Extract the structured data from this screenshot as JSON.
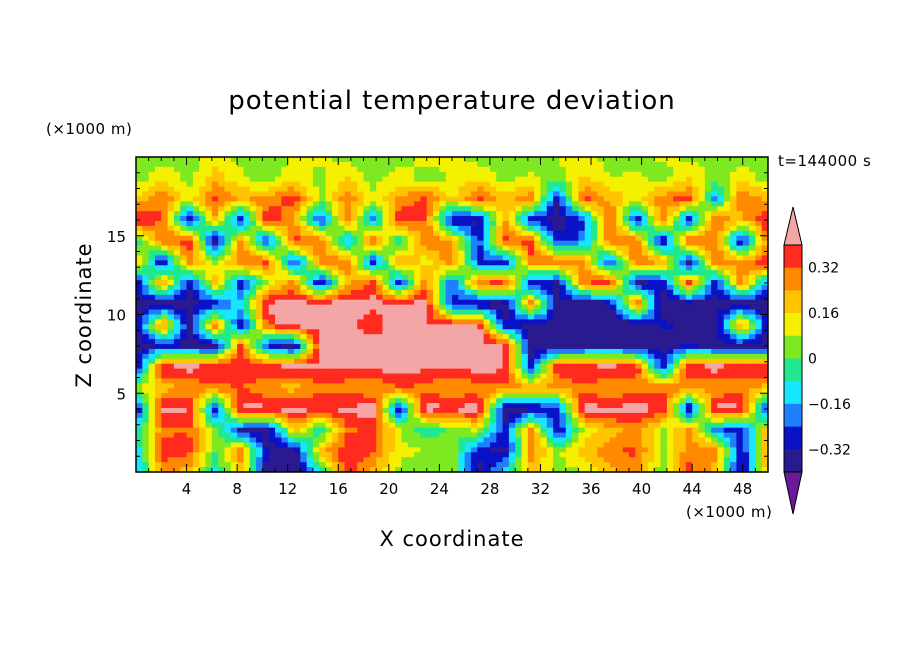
{
  "chart_data": {
    "type": "heatmap",
    "title": "potential temperature deviation",
    "xlabel": "X coordinate",
    "ylabel": "Z coordinate",
    "x_unit": "(×1000 m)",
    "y_unit": "(×1000 m)",
    "time_label": "t=144000 s",
    "xlim": [
      0,
      50
    ],
    "ylim": [
      0,
      20
    ],
    "x_ticks": [
      4,
      8,
      12,
      16,
      20,
      24,
      28,
      32,
      36,
      40,
      44,
      48
    ],
    "y_ticks": [
      5,
      10,
      15
    ],
    "colorbar_labels": [
      "0.32",
      "0.16",
      "0",
      "−0.16",
      "−0.32"
    ],
    "colorbar_levels": [
      -0.4,
      -0.32,
      -0.24,
      -0.16,
      -0.08,
      0,
      0.08,
      0.16,
      0.24,
      0.32,
      0.4
    ],
    "colorbar_colors": [
      "#6a1b9a",
      "#2a1a8f",
      "#0a12c8",
      "#1e7fff",
      "#18e5ff",
      "#1fe88e",
      "#7ee820",
      "#f5f000",
      "#ffc400",
      "#ff8a00",
      "#ff2b1e",
      "#f4a6a6"
    ],
    "z_grid": [
      [
        0.05,
        0.05,
        0.04,
        0.12,
        0.05,
        0.03,
        0.08,
        0.1,
        0.05,
        0.02,
        0.04,
        0.12,
        0.1,
        0.04,
        0.05,
        0.03,
        0.08,
        0.12,
        0.05,
        0.04,
        0.1,
        0.06,
        0.05,
        0.04,
        0.08
      ],
      [
        0.02,
        0.14,
        0.05,
        0.2,
        0.1,
        0.02,
        0.15,
        0.05,
        0.18,
        0.04,
        0.12,
        0.04,
        0.08,
        0.15,
        0.05,
        0.1,
        0.04,
        0.18,
        0.08,
        0.1,
        0.04,
        0.15,
        0.05,
        0.12,
        0.04
      ],
      [
        0.18,
        0.32,
        0.1,
        0.35,
        0.22,
        0.28,
        0.36,
        0.05,
        0.3,
        0.1,
        0.26,
        0.34,
        0.15,
        0.35,
        0.2,
        0.3,
        -0.34,
        0.36,
        0.22,
        0.12,
        0.3,
        0.35,
        -0.2,
        0.34,
        0.2
      ],
      [
        0.42,
        0.32,
        -0.34,
        0.2,
        -0.32,
        0.4,
        0.25,
        -0.3,
        0.32,
        -0.22,
        0.4,
        0.32,
        -0.34,
        -0.36,
        0.25,
        -0.3,
        -0.38,
        -0.26,
        0.38,
        -0.34,
        0.3,
        -0.3,
        0.34,
        0.2,
        0.42
      ],
      [
        -0.1,
        0.3,
        0.38,
        -0.38,
        0.26,
        -0.3,
        0.36,
        0.32,
        -0.2,
        0.35,
        -0.1,
        0.3,
        0.26,
        -0.28,
        0.34,
        0.35,
        -0.3,
        -0.2,
        0.3,
        0.32,
        -0.36,
        0.35,
        0.28,
        -0.35,
        0.3
      ],
      [
        0.24,
        -0.36,
        0.3,
        0.05,
        0.32,
        0.34,
        -0.3,
        0.28,
        0.32,
        -0.3,
        0.26,
        0.12,
        0.3,
        -0.26,
        -0.3,
        0.3,
        0.34,
        0.26,
        -0.3,
        0.34,
        0.24,
        -0.36,
        0.32,
        0.26,
        0.4
      ],
      [
        -0.36,
        0.3,
        -0.32,
        0.2,
        -0.3,
        0.1,
        0.3,
        -0.36,
        0.2,
        0.36,
        -0.3,
        0.3,
        -0.24,
        0.32,
        0.36,
        -0.3,
        -0.34,
        0.3,
        0.4,
        -0.36,
        -0.3,
        0.34,
        -0.32,
        0.3,
        -0.2
      ],
      [
        -0.34,
        -0.4,
        -0.36,
        -0.3,
        -0.1,
        0.42,
        0.44,
        0.45,
        0.44,
        0.42,
        0.43,
        0.44,
        -0.3,
        -0.36,
        -0.4,
        0.3,
        -0.36,
        -0.4,
        -0.38,
        0.36,
        -0.4,
        -0.38,
        -0.34,
        -0.4,
        -0.36
      ],
      [
        -0.38,
        0.32,
        -0.36,
        0.3,
        -0.34,
        0.36,
        0.45,
        0.44,
        0.42,
        0.36,
        0.44,
        0.4,
        0.42,
        0.44,
        -0.3,
        -0.36,
        -0.38,
        -0.34,
        -0.38,
        -0.4,
        -0.3,
        -0.36,
        -0.38,
        0.3,
        -0.36
      ],
      [
        -0.38,
        -0.3,
        -0.36,
        -0.38,
        0.36,
        -0.3,
        -0.38,
        0.44,
        0.44,
        0.45,
        0.42,
        0.44,
        0.44,
        0.45,
        0.42,
        -0.36,
        -0.38,
        -0.36,
        -0.34,
        -0.38,
        -0.36,
        -0.32,
        -0.38,
        -0.36,
        -0.38
      ],
      [
        -0.36,
        0.42,
        0.44,
        0.42,
        0.4,
        0.42,
        0.44,
        0.42,
        0.4,
        0.42,
        0.44,
        0.42,
        0.4,
        0.44,
        0.42,
        -0.3,
        0.4,
        0.42,
        0.44,
        0.4,
        -0.3,
        0.42,
        0.44,
        0.4,
        0.42
      ],
      [
        0.1,
        0.2,
        0.24,
        0.3,
        0.32,
        0.24,
        0.2,
        0.3,
        0.28,
        0.24,
        0.32,
        0.3,
        0.22,
        0.28,
        0.3,
        0.26,
        0.24,
        0.3,
        0.22,
        0.28,
        0.3,
        0.26,
        0.24,
        0.28,
        0.2
      ],
      [
        -0.36,
        0.44,
        0.42,
        -0.3,
        0.44,
        0.42,
        0.44,
        0.4,
        0.42,
        0.44,
        -0.34,
        0.44,
        0.42,
        0.44,
        -0.38,
        -0.36,
        -0.3,
        0.44,
        0.42,
        0.44,
        0.4,
        -0.36,
        0.44,
        0.42,
        -0.34
      ],
      [
        -0.1,
        0.3,
        0.32,
        0.04,
        -0.34,
        -0.36,
        0.2,
        -0.1,
        0.3,
        0.36,
        0.1,
        -0.08,
        0.02,
        0.1,
        -0.3,
        0.3,
        -0.34,
        0.1,
        0.2,
        0.3,
        0.06,
        0.28,
        -0.2,
        -0.3,
        0.24
      ],
      [
        -0.15,
        0.34,
        0.36,
        0.0,
        0.3,
        -0.36,
        -0.38,
        0.2,
        0.4,
        0.32,
        0.1,
        0.08,
        0.04,
        -0.3,
        -0.36,
        0.3,
        0.06,
        0.2,
        0.3,
        0.34,
        0.04,
        0.3,
        0.3,
        -0.34,
        0.3
      ],
      [
        -0.2,
        0.3,
        0.2,
        -0.1,
        0.2,
        -0.38,
        -0.4,
        -0.1,
        0.36,
        0.2,
        0.06,
        0.04,
        0.06,
        -0.36,
        -0.1,
        0.2,
        0.04,
        0.08,
        0.2,
        0.3,
        0.02,
        0.34,
        0.2,
        -0.36,
        0.2
      ]
    ]
  }
}
